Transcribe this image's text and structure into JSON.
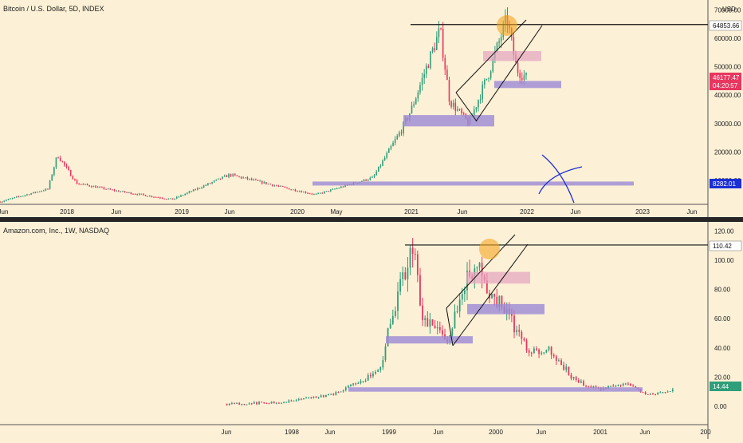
{
  "colors": {
    "background": "#fcf0d6",
    "up": "#2f9e7a",
    "down": "#e8365f",
    "resistance_line": "#111111",
    "channel_line": "#111111",
    "support_zone": "#9b8ad6",
    "resistance_zone": "#e4a2c0",
    "highlight_circle": "#f5a623",
    "cross_mark": "#1a2fd6"
  },
  "chart_data": [
    {
      "type": "candlestick",
      "title": "Bitcoin / U.S. Dollar, 5D, INDEX",
      "currency": "USD",
      "x_tick_labels": [
        "Jun",
        "2018",
        "Jun",
        "2019",
        "Jun",
        "2020",
        "May",
        "2021",
        "Jun",
        "2022",
        "Jun",
        "2023",
        "Jun"
      ],
      "y_tick_labels": [
        "70000.00",
        "60000.00",
        "50000.00",
        "40000.00",
        "30000.00",
        "20000.00",
        "10000.00"
      ],
      "ylim": [
        0,
        72000
      ],
      "price_labels": [
        {
          "text": "64853.66",
          "color": "#ffffff",
          "text_color": "#111111"
        },
        {
          "text": "46177.47",
          "subtext": "04:20:57",
          "color": "#e8365f",
          "text_color": "#ffffff"
        },
        {
          "text": "8282.01",
          "color": "#1a2fd6",
          "text_color": "#ffffff"
        }
      ],
      "series": [
        {
          "x": [
            "2017-06",
            "2017-11",
            "2017-12",
            "2018-02",
            "2018-06",
            "2018-12",
            "2019-06",
            "2019-12",
            "2020-03",
            "2020-09",
            "2020-12",
            "2021-01",
            "2021-04",
            "2021-05",
            "2021-07",
            "2021-09",
            "2021-11",
            "2021-12",
            "2022-01"
          ],
          "close": [
            2500,
            7000,
            19000,
            9000,
            6400,
            3300,
            12000,
            7200,
            5000,
            11000,
            28000,
            35000,
            63000,
            38000,
            30000,
            47000,
            67000,
            49000,
            46177
          ]
        }
      ],
      "annotations": {
        "resistance_level": 64853.66,
        "support_zones": [
          [
            29000,
            33000
          ],
          [
            42500,
            45000
          ],
          [
            8282,
            9600
          ]
        ],
        "resistance_zones": [
          [
            52000,
            55500
          ]
        ]
      }
    },
    {
      "type": "candlestick",
      "title": "Amazon.com, Inc., 1W, NASDAQ",
      "x_tick_labels": [
        "Jun",
        "1998",
        "Jun",
        "1999",
        "Jun",
        "2000",
        "Jun",
        "2001",
        "Jun",
        "200"
      ],
      "y_tick_labels": [
        "120.00",
        "100.00",
        "80.00",
        "60.00",
        "40.00",
        "20.00",
        "0.00"
      ],
      "ylim": [
        -5,
        122
      ],
      "price_labels": [
        {
          "text": "110.42",
          "color": "#ffffff",
          "text_color": "#111111"
        },
        {
          "text": "14.44",
          "color": "#2f9e7a",
          "text_color": "#ffffff"
        }
      ],
      "series": [
        {
          "x": [
            "1997-05",
            "1997-12",
            "1998-06",
            "1998-09",
            "1998-12",
            "1999-01",
            "1999-04",
            "1999-05",
            "1999-08",
            "1999-12",
            "2000-01",
            "2000-03",
            "2000-06",
            "2000-09",
            "2000-12",
            "2001-03",
            "2001-06",
            "2001-09",
            "2001-12"
          ],
          "close": [
            1.5,
            3,
            8,
            16,
            25,
            55,
            110,
            60,
            45,
            106,
            80,
            68,
            40,
            38,
            17,
            12,
            16,
            8,
            11
          ]
        }
      ],
      "annotations": {
        "resistance_level": 110.42,
        "support_zones": [
          [
            43,
            48
          ],
          [
            63,
            70
          ],
          [
            10,
            13
          ]
        ],
        "resistance_zones": [
          [
            84,
            92
          ]
        ]
      }
    }
  ]
}
